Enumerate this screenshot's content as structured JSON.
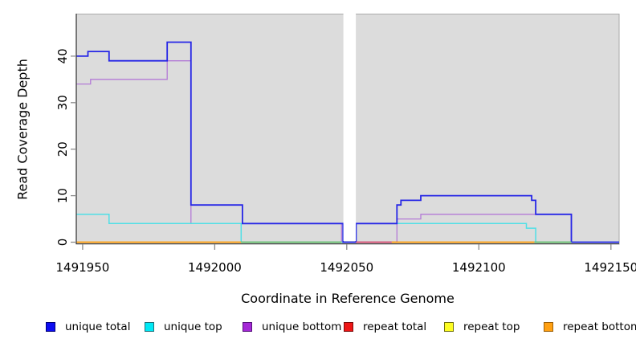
{
  "legend": {
    "items": [
      {
        "label": "unique total",
        "color": "#0d0df2",
        "border": "#00007a"
      },
      {
        "label": "unique top",
        "color": "#00e9f5",
        "border": "#20707a"
      },
      {
        "label": "unique bottom",
        "color": "#a428d6",
        "border": "#55127a"
      },
      {
        "label": "repeat total",
        "color": "#ee1616",
        "border": "#7a0b0b"
      },
      {
        "label": "repeat top",
        "color": "#fdfd22",
        "border": "#70700e"
      },
      {
        "label": "repeat bottom",
        "color": "#ffa012",
        "border": "#9c5f08"
      }
    ]
  },
  "chart_data": {
    "type": "line",
    "line_style": "step-after",
    "title": "",
    "xlabel": "Coordinate in Reference Genome",
    "ylabel": "Read Coverage Depth",
    "xlim": [
      1491947.6,
      1492153.1
    ],
    "ylim": [
      0,
      49
    ],
    "x_ticks": [
      1491950,
      1492000,
      1492050,
      1492100,
      1492150
    ],
    "x_tick_labels": [
      "1491950",
      "1492000",
      "1492050",
      "1492100",
      "1492150"
    ],
    "y_ticks": [
      0,
      10,
      20,
      30,
      40
    ],
    "y_tick_labels": [
      "0",
      "10",
      "20",
      "30",
      "40"
    ],
    "grid": false,
    "legend_position": "bottom",
    "panel_bg": "#dcdcdc",
    "panel_border": "#aaaaaa",
    "axis_color": "#3c3c3c",
    "tick_color": "#8c8c8c",
    "no_data_region": [
      1492048.7,
      1492053.4
    ],
    "series": [
      {
        "name": "unique bottom",
        "color": "#b37ad6",
        "width": 1.3,
        "end": 1492153.1,
        "steps": [
          [
            1491947.6,
            34
          ],
          [
            1491953,
            35
          ],
          [
            1491982,
            39
          ],
          [
            1491991,
            4
          ],
          [
            1492048,
            0
          ],
          [
            1492069,
            5
          ],
          [
            1492078,
            6
          ],
          [
            1492135,
            0
          ]
        ]
      },
      {
        "name": "unique top",
        "color": "#4fdfe6",
        "width": 1.5,
        "end": 1492153.1,
        "steps": [
          [
            1491947.6,
            6
          ],
          [
            1491960,
            4
          ],
          [
            1492010,
            0
          ],
          [
            1492053.5,
            4
          ],
          [
            1492118,
            3
          ],
          [
            1492121.5,
            0
          ]
        ]
      },
      {
        "name": "unique total",
        "color": "#2626e6",
        "width": 1.8,
        "end": 1492153.1,
        "steps": [
          [
            1491947.6,
            40
          ],
          [
            1491952,
            41
          ],
          [
            1491960,
            39
          ],
          [
            1491982,
            43
          ],
          [
            1491991,
            8
          ],
          [
            1492010.5,
            4
          ],
          [
            1492048.6,
            0
          ],
          [
            1492053.5,
            4
          ],
          [
            1492069,
            8
          ],
          [
            1492070.5,
            9
          ],
          [
            1492078,
            10
          ],
          [
            1492120,
            9
          ],
          [
            1492121.5,
            6
          ],
          [
            1492135,
            0
          ]
        ]
      }
    ],
    "baseline_segments": [
      {
        "name": "repeat bottom",
        "color": "#ff9b06",
        "value": 0,
        "x": [
          1491947.6,
          1492010
        ]
      },
      {
        "name": "unlabeled green",
        "color": "#68bd68",
        "value": 0,
        "x": [
          1492010,
          1492048
        ]
      },
      {
        "name": "repeat total",
        "color": "#d6496e",
        "value": 0,
        "x": [
          1492053.5,
          1492067
        ]
      },
      {
        "name": "repeat bottom",
        "color": "#ff9b06",
        "value": 0,
        "x": [
          1492067,
          1492121
        ]
      },
      {
        "name": "unlabeled green",
        "color": "#68bd68",
        "value": 0,
        "x": [
          1492121,
          1492135
        ]
      }
    ]
  }
}
